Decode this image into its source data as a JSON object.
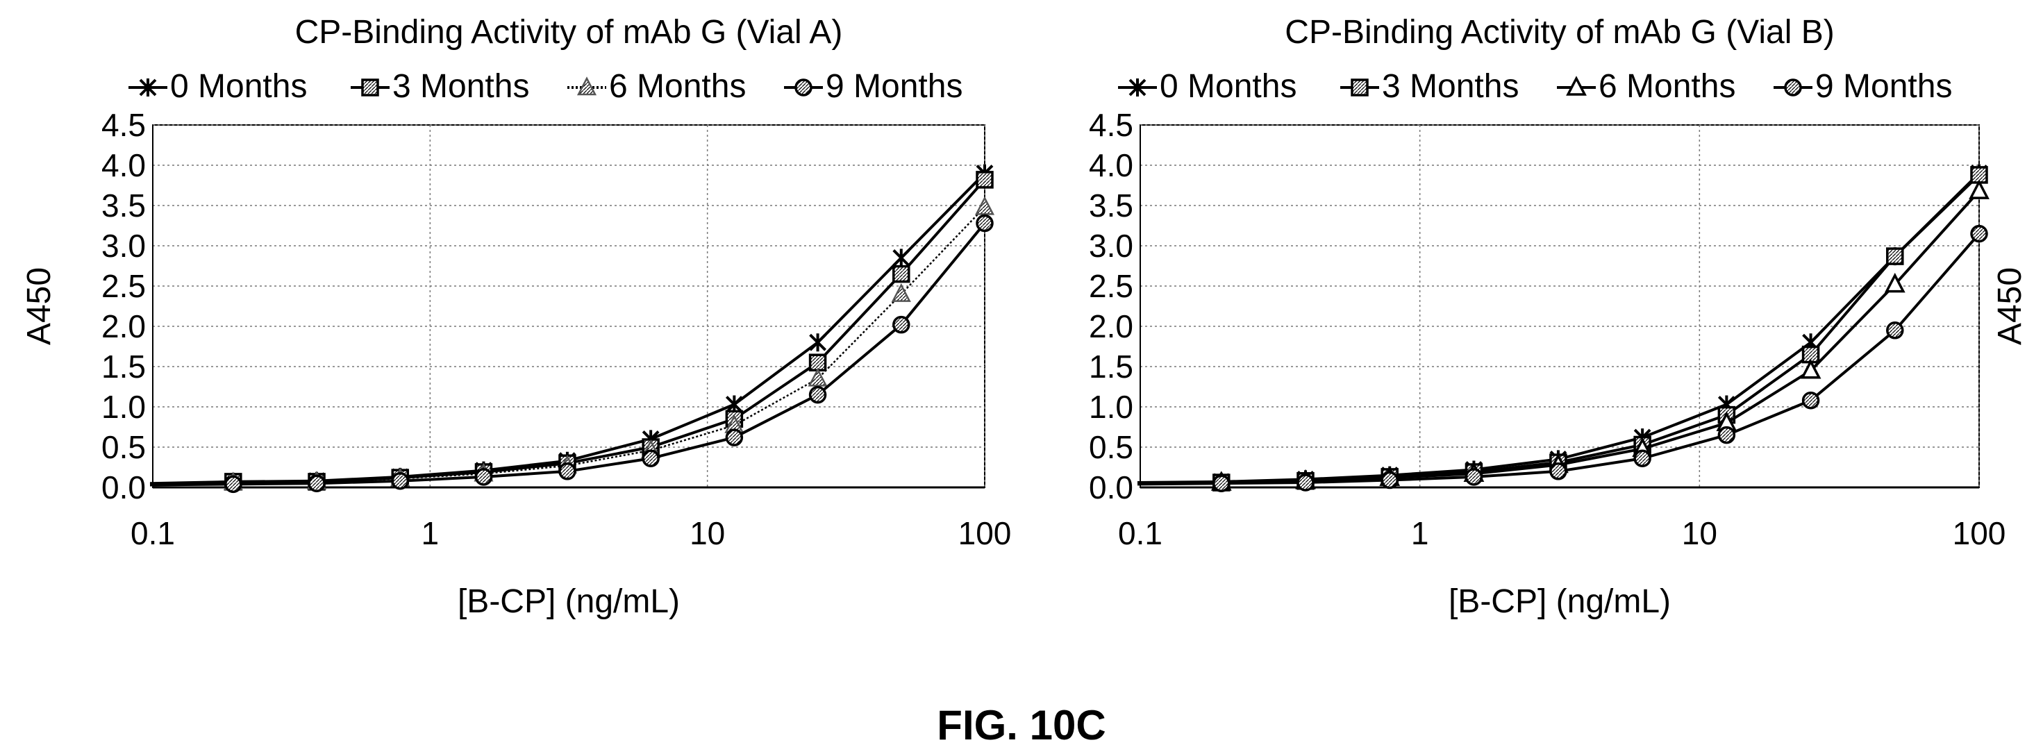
{
  "figure": {
    "caption": "FIG. 10C"
  },
  "chart_data": [
    {
      "type": "line",
      "title": "CP-Binding Activity of mAb G (Vial A)",
      "xlabel": "[B-CP] (ng/mL)",
      "ylabel": "A450",
      "ylabel_side": "left",
      "xscale": "log",
      "xlim": [
        0.1,
        100
      ],
      "ylim": [
        0,
        4.5
      ],
      "xticks": [
        "0.1",
        "1",
        "10",
        "100"
      ],
      "yticks": [
        "0.0",
        "0.5",
        "1.0",
        "1.5",
        "2.0",
        "2.5",
        "3.0",
        "3.5",
        "4.0",
        "4.5"
      ],
      "grid": true,
      "legend_position": "top",
      "x": [
        0.05,
        0.195,
        0.39,
        0.78,
        1.56,
        3.125,
        6.25,
        12.5,
        25,
        50,
        100
      ],
      "series": [
        {
          "name": "0 Months",
          "marker": "star",
          "dash": "solid",
          "values": [
            0.05,
            0.07,
            0.08,
            0.13,
            0.21,
            0.33,
            0.6,
            1.03,
            1.8,
            2.85,
            3.9
          ]
        },
        {
          "name": "3 Months",
          "marker": "square",
          "dash": "solid",
          "values": [
            0.04,
            0.07,
            0.07,
            0.12,
            0.19,
            0.3,
            0.5,
            0.85,
            1.55,
            2.65,
            3.82
          ]
        },
        {
          "name": "6 Months",
          "marker": "triangle-hatched",
          "dash": "dotted",
          "values": [
            0.04,
            0.06,
            0.07,
            0.11,
            0.17,
            0.27,
            0.46,
            0.77,
            1.35,
            2.4,
            3.48
          ]
        },
        {
          "name": "9 Months",
          "marker": "circle",
          "dash": "solid",
          "values": [
            0.03,
            0.04,
            0.05,
            0.08,
            0.13,
            0.2,
            0.36,
            0.62,
            1.15,
            2.02,
            3.28
          ]
        }
      ]
    },
    {
      "type": "line",
      "title": "CP-Binding Activity of mAb G (Vial B)",
      "xlabel": "[B-CP] (ng/mL)",
      "ylabel": "A450",
      "ylabel_side": "right",
      "xscale": "log",
      "xlim": [
        0.1,
        100
      ],
      "ylim": [
        0,
        4.5
      ],
      "xticks": [
        "0.1",
        "1",
        "10",
        "100"
      ],
      "yticks": [
        "0.0",
        "0.5",
        "1.0",
        "1.5",
        "2.0",
        "2.5",
        "3.0",
        "3.5",
        "4.0",
        "4.5"
      ],
      "grid": true,
      "legend_position": "top",
      "x": [
        0.05,
        0.195,
        0.39,
        0.78,
        1.56,
        3.125,
        6.25,
        12.5,
        25,
        50,
        100
      ],
      "series": [
        {
          "name": "0 Months",
          "marker": "star",
          "dash": "solid",
          "values": [
            0.06,
            0.07,
            0.1,
            0.15,
            0.22,
            0.35,
            0.62,
            1.03,
            1.8,
            2.87,
            3.9
          ]
        },
        {
          "name": "3 Months",
          "marker": "square",
          "dash": "solid",
          "values": [
            0.05,
            0.06,
            0.08,
            0.13,
            0.19,
            0.31,
            0.53,
            0.9,
            1.65,
            2.87,
            3.88
          ]
        },
        {
          "name": "6 Months",
          "marker": "triangle",
          "dash": "solid",
          "values": [
            0.05,
            0.06,
            0.08,
            0.12,
            0.17,
            0.28,
            0.48,
            0.8,
            1.45,
            2.52,
            3.68
          ]
        },
        {
          "name": "9 Months",
          "marker": "circle",
          "dash": "solid",
          "values": [
            0.04,
            0.05,
            0.06,
            0.09,
            0.13,
            0.2,
            0.36,
            0.65,
            1.08,
            1.95,
            3.15
          ]
        }
      ]
    }
  ]
}
